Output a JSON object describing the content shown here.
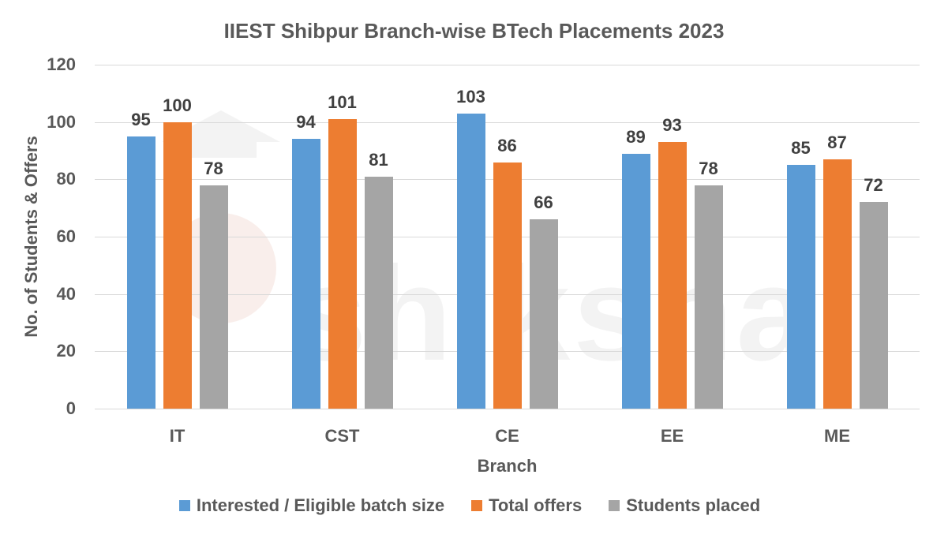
{
  "chart_data": {
    "type": "bar",
    "title": "IIEST Shibpur Branch-wise BTech Placements 2023",
    "xlabel": "Branch",
    "ylabel": "No. of Students & Offers",
    "categories": [
      "IT",
      "CST",
      "CE",
      "EE",
      "ME"
    ],
    "series": [
      {
        "name": "Interested / Eligible batch size",
        "color": "#5b9bd5",
        "values": [
          95,
          94,
          103,
          89,
          85
        ]
      },
      {
        "name": "Total offers",
        "color": "#ed7d31",
        "values": [
          100,
          101,
          86,
          93,
          87
        ]
      },
      {
        "name": "Students placed",
        "color": "#a5a5a5",
        "values": [
          78,
          81,
          66,
          78,
          72
        ]
      }
    ],
    "ylim": [
      0,
      120
    ],
    "yticks": [
      0,
      20,
      40,
      60,
      80,
      100,
      120
    ],
    "grid": true,
    "legend_position": "bottom",
    "data_labels": true
  },
  "watermark": "shiksha"
}
